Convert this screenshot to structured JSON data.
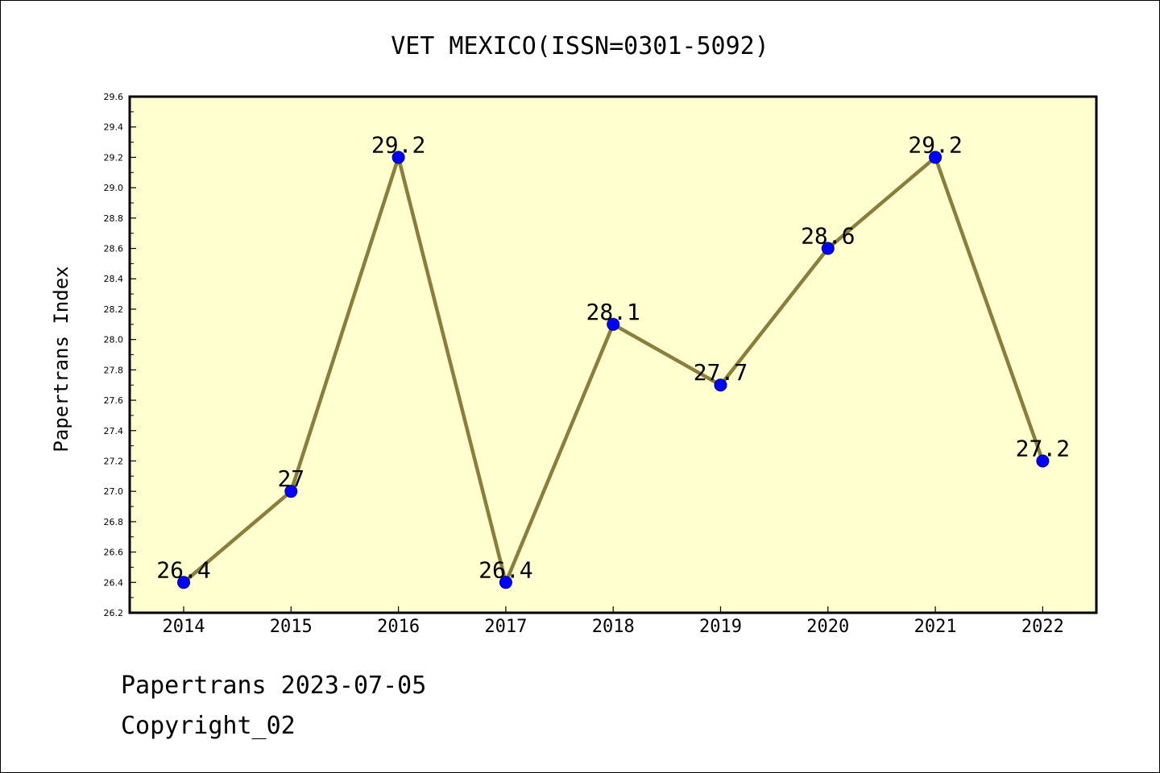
{
  "chart_data": {
    "type": "line",
    "title": "VET MEXICO(ISSN=0301-5092)",
    "xlabel": "",
    "ylabel": "Papertrans Index",
    "categories": [
      "2014",
      "2015",
      "2016",
      "2017",
      "2018",
      "2019",
      "2020",
      "2021",
      "2022"
    ],
    "series": [
      {
        "values": [
          26.4,
          27,
          29.2,
          26.4,
          28.1,
          27.7,
          28.6,
          29.2,
          27.2
        ],
        "data_labels": [
          "26.4",
          "27",
          "29.2",
          "26.4",
          "28.1",
          "27.7",
          "28.6",
          "29.2",
          "27.2"
        ],
        "line_color": "#8b7d3a",
        "marker_color": "#0000ff"
      }
    ],
    "ylim": [
      26.2,
      29.6
    ],
    "yticks": [
      "26.2",
      "26.4",
      "26.6",
      "26.8",
      "27.0",
      "27.2",
      "27.4",
      "27.6",
      "27.8",
      "28.0",
      "28.2",
      "28.4",
      "28.6",
      "28.8",
      "29.0",
      "29.2",
      "29.4",
      "29.6"
    ],
    "grid": false,
    "plot_background": "#ffffd0"
  },
  "footer": {
    "date_line": "Papertrans 2023-07-05",
    "copyright_line": "Copyright_02"
  }
}
